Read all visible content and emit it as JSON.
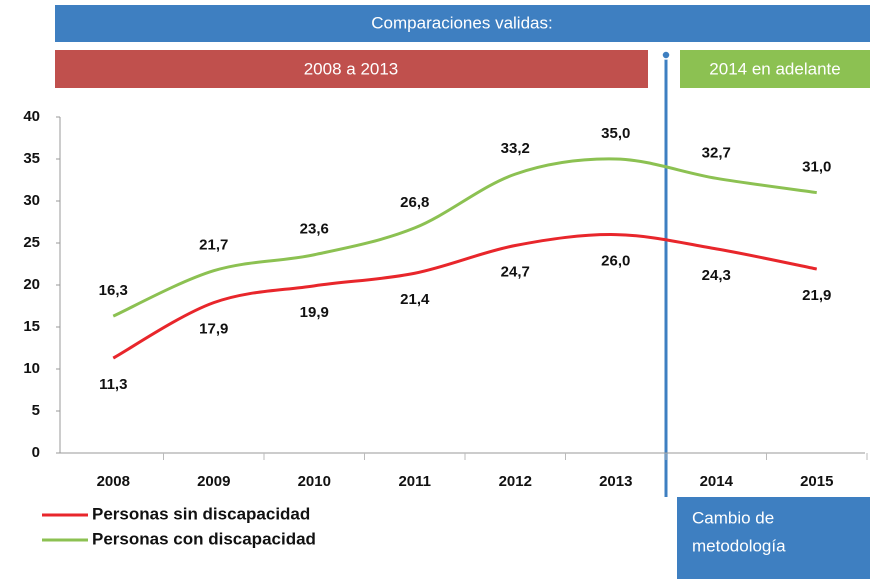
{
  "chart_data": {
    "type": "line",
    "header": "Comparaciones validas:",
    "periods": [
      {
        "label": "2008 a 2013",
        "color": "#c0504d"
      },
      {
        "label": "2014 en adelante",
        "color": "#8cc152"
      }
    ],
    "annotation": [
      "Cambio de",
      "metodología"
    ],
    "categories": [
      "2008",
      "2009",
      "2010",
      "2011",
      "2012",
      "2013",
      "2014",
      "2015"
    ],
    "series": [
      {
        "name": "Personas sin discapacidad",
        "color": "#e8262b",
        "values": [
          11.3,
          17.9,
          19.9,
          21.4,
          24.7,
          26.0,
          24.3,
          21.9
        ],
        "value_labels": [
          "11,3",
          "17,9",
          "19,9",
          "21,4",
          "24,7",
          "26,0",
          "24,3",
          "21,9"
        ]
      },
      {
        "name": "Personas con discapacidad",
        "color": "#8cc152",
        "values": [
          16.3,
          21.7,
          23.6,
          26.8,
          33.2,
          35.0,
          32.7,
          31.0
        ],
        "value_labels": [
          "16,3",
          "21,7",
          "23,6",
          "26,8",
          "33,2",
          "35,0",
          "32,7",
          "31,0"
        ]
      }
    ],
    "ylim": [
      0,
      40
    ],
    "yticks": [
      0,
      5,
      10,
      15,
      20,
      25,
      30,
      35,
      40
    ]
  }
}
